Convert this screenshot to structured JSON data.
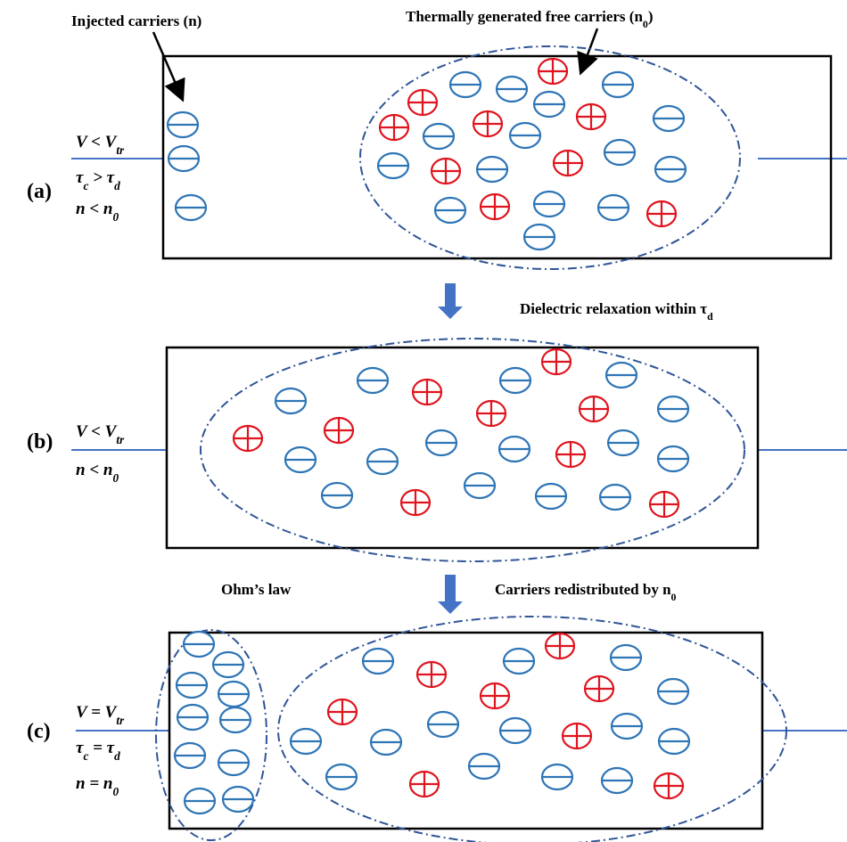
{
  "annotations": {
    "injected": [
      "Injected carriers (n)"
    ],
    "thermal": [
      "Thermally generated free carriers (n",
      "0",
      ")"
    ],
    "dielectric": [
      "Dielectric relaxation within τ",
      "d"
    ],
    "ohm": [
      "Ohm’s law"
    ],
    "redistributed": [
      "Carriers redistributed by n",
      "0"
    ]
  },
  "panels": [
    {
      "label": "(a)",
      "conditions": [
        [
          "V < V",
          "tr"
        ],
        [
          "τ",
          "c",
          " > τ",
          "d"
        ],
        [
          "n < n",
          "0"
        ]
      ]
    },
    {
      "label": "(b)",
      "conditions": [
        [
          "V < V",
          "tr"
        ],
        [
          "n < n",
          "0"
        ]
      ]
    },
    {
      "label": "(c)",
      "conditions": [
        [
          "V = V",
          "tr"
        ],
        [
          "τ",
          "c",
          " = τ",
          "d"
        ],
        [
          "n = n",
          "0"
        ]
      ]
    }
  ]
}
